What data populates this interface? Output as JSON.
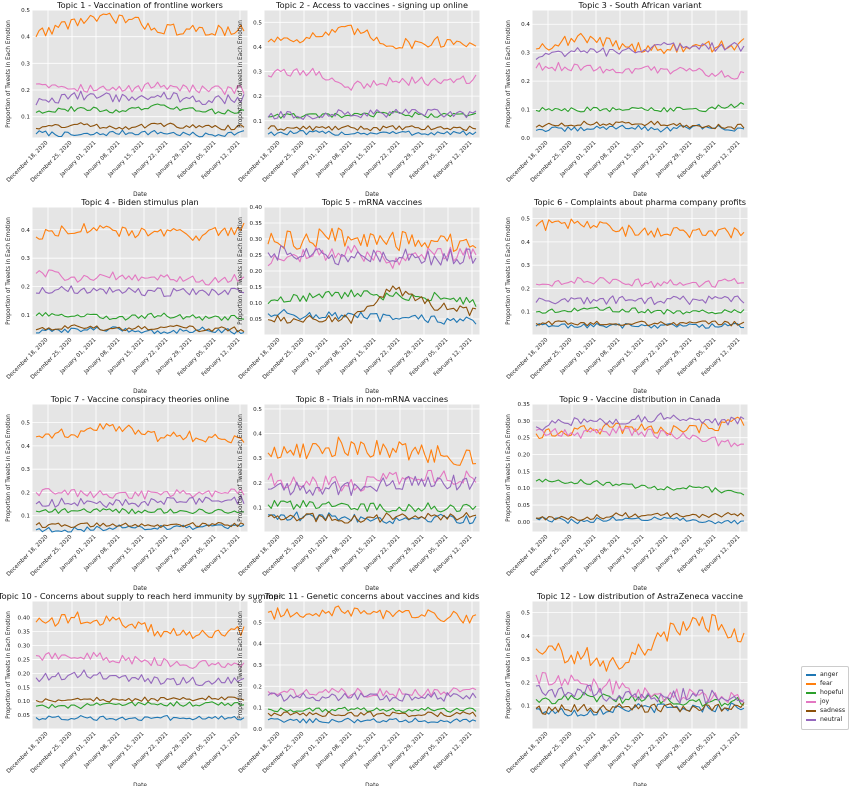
{
  "chart_data": {
    "type": "line",
    "x_label": "Date",
    "y_label": "Proportion of Tweets in Each Emotion",
    "x_ticks": [
      "December 18, 2020",
      "December 25, 2020",
      "January 01, 2021",
      "January 08, 2021",
      "January 15, 2021",
      "January 22, 2021",
      "January 29, 2021",
      "February 05, 2021",
      "February 12, 2021"
    ],
    "x_range": [
      "2020-12-11",
      "2021-02-14"
    ],
    "legend": {
      "position": "right",
      "entries": [
        {
          "name": "anger",
          "color": "#1f77b4"
        },
        {
          "name": "fear",
          "color": "#ff7f0e"
        },
        {
          "name": "hopeful",
          "color": "#2ca02c"
        },
        {
          "name": "joy",
          "color": "#e377c2"
        },
        {
          "name": "sadness",
          "color": "#8c510a"
        },
        {
          "name": "neutral",
          "color": "#9467bd"
        }
      ]
    },
    "grid": true,
    "panels": [
      {
        "title": "Topic 1 - Vaccination of frontline workers",
        "ylim": [
          0.02,
          0.5
        ],
        "yticks": [
          "0.1",
          "0.2",
          "0.3",
          "0.4",
          "0.5"
        ],
        "series": {
          "anger": [
            0.04,
            0.03,
            0.04,
            0.04,
            0.03,
            0.04
          ],
          "fear": [
            0.41,
            0.46,
            0.47,
            0.43,
            0.42,
            0.43
          ],
          "hopeful": [
            0.12,
            0.13,
            0.12,
            0.14,
            0.12,
            0.12
          ],
          "joy": [
            0.23,
            0.21,
            0.2,
            0.22,
            0.2,
            0.2
          ],
          "sadness": [
            0.06,
            0.07,
            0.06,
            0.07,
            0.06,
            0.06
          ],
          "neutral": [
            0.15,
            0.18,
            0.17,
            0.18,
            0.16,
            0.17
          ]
        }
      },
      {
        "title": "Topic 2 - Access to vaccines - signing up online",
        "ylim": [
          0.03,
          0.55
        ],
        "yticks": [
          "0.1",
          "0.2",
          "0.3",
          "0.4",
          "0.5"
        ],
        "series": {
          "anger": [
            0.05,
            0.05,
            0.05,
            0.05,
            0.05,
            0.05
          ],
          "fear": [
            0.43,
            0.44,
            0.47,
            0.41,
            0.42,
            0.42
          ],
          "hopeful": [
            0.12,
            0.12,
            0.12,
            0.13,
            0.12,
            0.13
          ],
          "joy": [
            0.29,
            0.3,
            0.24,
            0.26,
            0.26,
            0.27
          ],
          "sadness": [
            0.07,
            0.07,
            0.07,
            0.07,
            0.07,
            0.07
          ],
          "neutral": [
            0.12,
            0.12,
            0.13,
            0.13,
            0.13,
            0.13
          ]
        }
      },
      {
        "title": "Topic 3 - South African variant",
        "ylim": [
          0.0,
          0.45
        ],
        "yticks": [
          "0.0",
          "0.1",
          "0.2",
          "0.3",
          "0.4"
        ],
        "series": {
          "anger": [
            0.03,
            0.03,
            0.04,
            0.03,
            0.04,
            0.03
          ],
          "fear": [
            0.32,
            0.35,
            0.33,
            0.31,
            0.32,
            0.33
          ],
          "hopeful": [
            0.1,
            0.1,
            0.1,
            0.1,
            0.1,
            0.12
          ],
          "joy": [
            0.25,
            0.25,
            0.24,
            0.24,
            0.23,
            0.22
          ],
          "sadness": [
            0.04,
            0.05,
            0.05,
            0.05,
            0.04,
            0.04
          ],
          "neutral": [
            0.28,
            0.31,
            0.3,
            0.32,
            0.32,
            0.32
          ]
        }
      },
      {
        "title": "Topic 4 - Biden stimulus plan",
        "ylim": [
          0.03,
          0.48
        ],
        "yticks": [
          "0.1",
          "0.2",
          "0.3",
          "0.4"
        ],
        "series": {
          "anger": [
            0.04,
            0.05,
            0.05,
            0.04,
            0.05,
            0.04
          ],
          "fear": [
            0.38,
            0.41,
            0.39,
            0.39,
            0.38,
            0.41
          ],
          "hopeful": [
            0.1,
            0.1,
            0.09,
            0.1,
            0.09,
            0.09
          ],
          "joy": [
            0.25,
            0.23,
            0.24,
            0.23,
            0.22,
            0.23
          ],
          "sadness": [
            0.05,
            0.06,
            0.05,
            0.06,
            0.05,
            0.05
          ],
          "neutral": [
            0.18,
            0.19,
            0.19,
            0.18,
            0.18,
            0.18
          ]
        }
      },
      {
        "title": "Topic 5 - mRNA vaccines",
        "ylim": [
          0.0,
          0.4
        ],
        "yticks": [
          "0.05",
          "0.10",
          "0.15",
          "0.20",
          "0.25",
          "0.30",
          "0.35",
          "0.40"
        ],
        "series": {
          "anger": [
            0.07,
            0.06,
            0.06,
            0.05,
            0.05,
            0.04
          ],
          "fear": [
            0.29,
            0.3,
            0.31,
            0.29,
            0.3,
            0.26
          ],
          "hopeful": [
            0.1,
            0.12,
            0.13,
            0.12,
            0.12,
            0.1
          ],
          "joy": [
            0.22,
            0.25,
            0.26,
            0.23,
            0.25,
            0.25
          ],
          "sadness": [
            0.05,
            0.05,
            0.05,
            0.15,
            0.09,
            0.07
          ],
          "neutral": [
            0.26,
            0.25,
            0.24,
            0.25,
            0.24,
            0.25
          ]
        }
      },
      {
        "title": "Topic 6 - Complaints about pharma company profits",
        "ylim": [
          0.0,
          0.55
        ],
        "yticks": [
          "0.1",
          "0.2",
          "0.3",
          "0.4",
          "0.5"
        ],
        "series": {
          "anger": [
            0.04,
            0.04,
            0.04,
            0.04,
            0.04,
            0.04
          ],
          "fear": [
            0.47,
            0.48,
            0.45,
            0.44,
            0.44,
            0.44
          ],
          "hopeful": [
            0.1,
            0.11,
            0.11,
            0.1,
            0.1,
            0.1
          ],
          "joy": [
            0.22,
            0.24,
            0.23,
            0.22,
            0.22,
            0.23
          ],
          "sadness": [
            0.05,
            0.05,
            0.05,
            0.05,
            0.05,
            0.05
          ],
          "neutral": [
            0.14,
            0.15,
            0.15,
            0.15,
            0.15,
            0.15
          ]
        }
      },
      {
        "title": "Topic 7 - Vaccine conspiracy theories online",
        "ylim": [
          0.03,
          0.58
        ],
        "yticks": [
          "0.1",
          "0.2",
          "0.3",
          "0.4",
          "0.5"
        ],
        "series": {
          "anger": [
            0.04,
            0.04,
            0.05,
            0.05,
            0.05,
            0.05
          ],
          "fear": [
            0.44,
            0.46,
            0.48,
            0.44,
            0.44,
            0.42
          ],
          "hopeful": [
            0.12,
            0.12,
            0.12,
            0.12,
            0.12,
            0.11
          ],
          "joy": [
            0.2,
            0.2,
            0.19,
            0.19,
            0.2,
            0.2
          ],
          "sadness": [
            0.06,
            0.06,
            0.06,
            0.06,
            0.06,
            0.06
          ],
          "neutral": [
            0.15,
            0.16,
            0.15,
            0.16,
            0.16,
            0.17
          ]
        }
      },
      {
        "title": "Topic 8 - Trials in non-mRNA vaccines",
        "ylim": [
          0.0,
          0.52
        ],
        "yticks": [
          "0.1",
          "0.2",
          "0.3",
          "0.4",
          "0.5"
        ],
        "series": {
          "anger": [
            0.07,
            0.06,
            0.06,
            0.05,
            0.06,
            0.05
          ],
          "fear": [
            0.32,
            0.34,
            0.35,
            0.33,
            0.32,
            0.3
          ],
          "hopeful": [
            0.11,
            0.11,
            0.1,
            0.1,
            0.1,
            0.1
          ],
          "joy": [
            0.21,
            0.2,
            0.19,
            0.22,
            0.22,
            0.23
          ],
          "sadness": [
            0.06,
            0.06,
            0.05,
            0.06,
            0.06,
            0.07
          ],
          "neutral": [
            0.17,
            0.18,
            0.18,
            0.19,
            0.2,
            0.2
          ]
        }
      },
      {
        "title": "Topic 9 - Vaccine distribution in Canada",
        "ylim": [
          -0.03,
          0.35
        ],
        "yticks": [
          "0.00",
          "0.05",
          "0.10",
          "0.15",
          "0.20",
          "0.25",
          "0.30",
          "0.35"
        ],
        "series": {
          "anger": [
            0.01,
            0.0,
            0.01,
            0.01,
            0.0,
            0.0
          ],
          "fear": [
            0.26,
            0.27,
            0.28,
            0.27,
            0.28,
            0.3
          ],
          "hopeful": [
            0.12,
            0.12,
            0.11,
            0.1,
            0.1,
            0.08
          ],
          "joy": [
            0.27,
            0.26,
            0.27,
            0.26,
            0.25,
            0.22
          ],
          "sadness": [
            0.01,
            0.01,
            0.02,
            0.02,
            0.02,
            0.02
          ],
          "neutral": [
            0.28,
            0.3,
            0.3,
            0.31,
            0.3,
            0.3
          ]
        }
      },
      {
        "title": "Topic 10 - Concerns about supply to reach herd immunity by summer",
        "ylim": [
          0.0,
          0.46
        ],
        "yticks": [
          "0.05",
          "0.10",
          "0.15",
          "0.20",
          "0.25",
          "0.30",
          "0.35",
          "0.40"
        ],
        "series": {
          "anger": [
            0.04,
            0.04,
            0.04,
            0.04,
            0.04,
            0.04
          ],
          "fear": [
            0.38,
            0.4,
            0.38,
            0.35,
            0.34,
            0.35
          ],
          "hopeful": [
            0.08,
            0.08,
            0.09,
            0.09,
            0.09,
            0.09
          ],
          "joy": [
            0.26,
            0.27,
            0.25,
            0.24,
            0.23,
            0.23
          ],
          "sadness": [
            0.1,
            0.11,
            0.1,
            0.11,
            0.11,
            0.11
          ],
          "neutral": [
            0.18,
            0.2,
            0.19,
            0.17,
            0.17,
            0.18
          ]
        }
      },
      {
        "title": "Topic 11 - Genetic concerns about vaccines and kids",
        "ylim": [
          0.0,
          0.6
        ],
        "yticks": [
          "0.0",
          "0.1",
          "0.2",
          "0.3",
          "0.4",
          "0.5",
          "0.6"
        ],
        "series": {
          "anger": [
            0.04,
            0.04,
            0.04,
            0.04,
            0.04,
            0.04
          ],
          "fear": [
            0.54,
            0.55,
            0.55,
            0.54,
            0.53,
            0.52
          ],
          "hopeful": [
            0.09,
            0.09,
            0.09,
            0.09,
            0.09,
            0.09
          ],
          "joy": [
            0.17,
            0.17,
            0.17,
            0.17,
            0.17,
            0.18
          ],
          "sadness": [
            0.07,
            0.07,
            0.07,
            0.07,
            0.07,
            0.07
          ],
          "neutral": [
            0.15,
            0.15,
            0.15,
            0.15,
            0.15,
            0.15
          ]
        }
      },
      {
        "title": "Topic 12 - Low distribution of AstraZeneca vaccine",
        "ylim": [
          0.0,
          0.55
        ],
        "yticks": [
          "0.1",
          "0.2",
          "0.3",
          "0.4",
          "0.5"
        ],
        "series": {
          "anger": [
            0.08,
            0.07,
            0.09,
            0.09,
            0.09,
            0.1
          ],
          "fear": [
            0.33,
            0.32,
            0.28,
            0.4,
            0.47,
            0.4
          ],
          "hopeful": [
            0.12,
            0.14,
            0.13,
            0.13,
            0.11,
            0.12
          ],
          "joy": [
            0.22,
            0.2,
            0.18,
            0.15,
            0.14,
            0.13
          ],
          "sadness": [
            0.08,
            0.09,
            0.09,
            0.09,
            0.09,
            0.1
          ],
          "neutral": [
            0.17,
            0.16,
            0.14,
            0.14,
            0.14,
            0.13
          ]
        }
      }
    ]
  }
}
